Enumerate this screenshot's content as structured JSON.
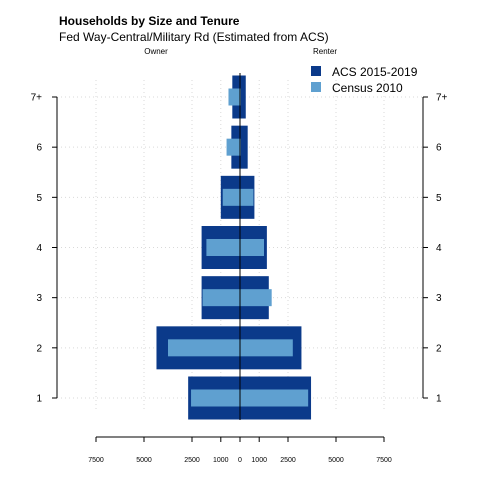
{
  "colors": {
    "acs": "#0b3a8a",
    "census": "#5fa0d0",
    "grid": "#d9d9d9"
  },
  "chart_data": {
    "type": "bar",
    "orientation": "horizontal",
    "title": "Households by Size and Tenure",
    "subtitle": "Fed Way-Central/Military Rd (Estimated from ACS)",
    "left_label": "Owner",
    "right_label": "Renter",
    "categories": [
      "1",
      "2",
      "3",
      "4",
      "5",
      "6",
      "7+"
    ],
    "xlim": [
      -7500,
      7500
    ],
    "xticks": [
      -7500,
      -5000,
      -2500,
      -1000,
      0,
      1000,
      2500,
      5000,
      7500
    ],
    "xtick_labels": [
      "7500",
      "5000",
      "2500",
      "1000",
      "0",
      "1000",
      "2500",
      "5000",
      "7500"
    ],
    "grid": true,
    "legend_position": "top-right",
    "series": [
      {
        "name": "ACS 2015-2019",
        "owner": [
          2700,
          4350,
          2000,
          2000,
          1000,
          450,
          400
        ],
        "renter": [
          3700,
          3200,
          1500,
          1400,
          750,
          400,
          300
        ]
      },
      {
        "name": "Census 2010",
        "owner": [
          2550,
          3750,
          1950,
          1750,
          900,
          700,
          600
        ],
        "renter": [
          3550,
          2750,
          1650,
          1250,
          700,
          50,
          50
        ]
      }
    ]
  }
}
